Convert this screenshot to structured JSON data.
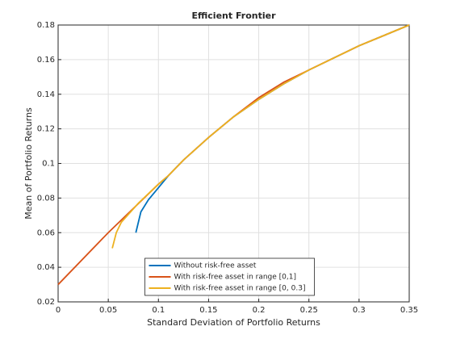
{
  "chart_data": {
    "type": "line",
    "title": "Efficient Frontier",
    "x_label": "Standard Deviation of Portfolio Returns",
    "y_label": "Mean of Portfolio Returns",
    "xlim": [
      0,
      0.35
    ],
    "ylim": [
      0.02,
      0.18
    ],
    "xticks": [
      0,
      0.05,
      0.1,
      0.15,
      0.2,
      0.25,
      0.3,
      0.35
    ],
    "yticks": [
      0.02,
      0.04,
      0.06,
      0.08,
      0.1,
      0.12,
      0.14,
      0.16,
      0.18
    ],
    "grid": true,
    "legend_location": "south",
    "series": [
      {
        "name": "Without risk-free asset",
        "color": "#0072bd",
        "x": [
          0.0775,
          0.0825,
          0.09,
          0.1,
          0.11,
          0.125,
          0.15,
          0.175,
          0.2,
          0.225,
          0.25,
          0.275,
          0.3,
          0.325,
          0.35
        ],
        "values": [
          0.06,
          0.072,
          0.079,
          0.086,
          0.093,
          0.102,
          0.115,
          0.127,
          0.137,
          0.146,
          0.154,
          0.161,
          0.168,
          0.174,
          0.18
        ]
      },
      {
        "name": "With risk-free asset in range [0,1]",
        "color": "#d95319",
        "x": [
          0,
          0.05,
          0.1,
          0.11,
          0.125,
          0.15,
          0.175,
          0.2,
          0.225,
          0.25,
          0.275,
          0.3,
          0.325,
          0.35
        ],
        "values": [
          0.03,
          0.06,
          0.088,
          0.093,
          0.102,
          0.115,
          0.127,
          0.138,
          0.147,
          0.154,
          0.161,
          0.168,
          0.174,
          0.18
        ]
      },
      {
        "name": "With risk-free asset in range [0, 0.3]",
        "color": "#edb120",
        "x": [
          0.054,
          0.058,
          0.063,
          0.08,
          0.1,
          0.11,
          0.125,
          0.15,
          0.175,
          0.2,
          0.225,
          0.25,
          0.275,
          0.3,
          0.325,
          0.35
        ],
        "values": [
          0.051,
          0.06,
          0.066,
          0.077,
          0.088,
          0.093,
          0.102,
          0.115,
          0.127,
          0.137,
          0.146,
          0.154,
          0.161,
          0.168,
          0.174,
          0.18
        ]
      }
    ]
  }
}
